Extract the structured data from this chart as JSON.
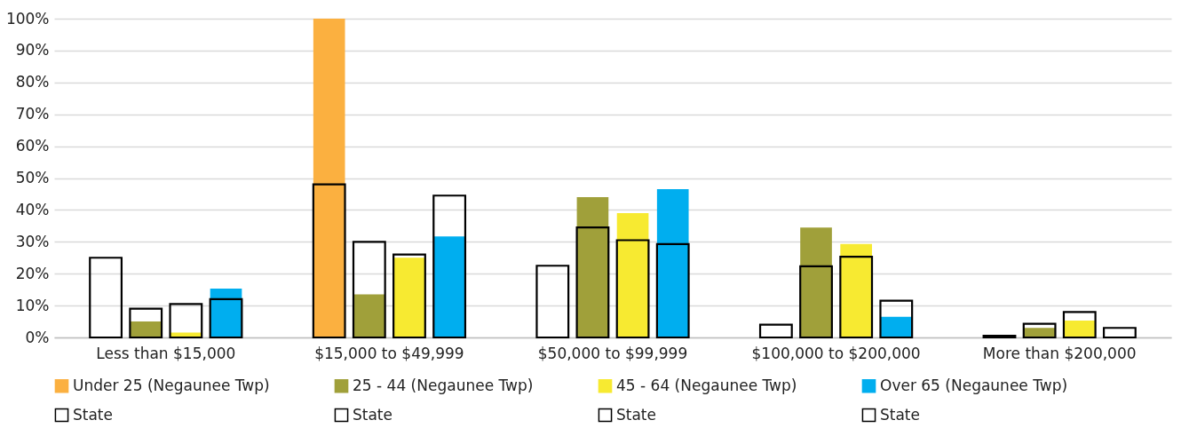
{
  "chart_data": {
    "type": "bar",
    "categories": [
      "Less than $15,000",
      "$15,000 to $49,999",
      "$50,000 to $99,999",
      "$100,000 to $200,000",
      "More than $200,000"
    ],
    "series": [
      {
        "name": "Under 25 (Negaunee Twp)",
        "color": "#fbb040",
        "values": [
          0,
          100,
          0,
          0,
          0
        ]
      },
      {
        "name": "25 - 44 (Negaunee Twp)",
        "color": "#a0a03a",
        "values": [
          5,
          13.5,
          44,
          34.5,
          3
        ]
      },
      {
        "name": "45 - 64 (Negaunee Twp)",
        "color": "#f7ea31",
        "values": [
          1.5,
          25,
          39,
          29.3,
          5.3
        ]
      },
      {
        "name": "Over 65 (Negaunee Twp)",
        "color": "#00aeef",
        "values": [
          15.3,
          31.7,
          46.5,
          6.5,
          0
        ]
      },
      {
        "name": "State",
        "color": "#000000",
        "values": [
          25,
          48,
          22.5,
          4,
          0.5
        ]
      },
      {
        "name": "State",
        "color": "#000000",
        "values": [
          9,
          30,
          34.5,
          22.3,
          4.3
        ]
      },
      {
        "name": "State",
        "color": "#000000",
        "values": [
          10.5,
          26,
          30.5,
          25.3,
          8
        ]
      },
      {
        "name": "State",
        "color": "#000000",
        "values": [
          12,
          44.5,
          29.3,
          11.5,
          3
        ]
      }
    ],
    "ylim": [
      0,
      100
    ],
    "yticks": [
      {
        "value": 0,
        "label": "0%"
      },
      {
        "value": 10,
        "label": "10%"
      },
      {
        "value": 20,
        "label": "20%"
      },
      {
        "value": 30,
        "label": "30%"
      },
      {
        "value": 40,
        "label": "40%"
      },
      {
        "value": 50,
        "label": "50%"
      },
      {
        "value": 60,
        "label": "60%"
      },
      {
        "value": 70,
        "label": "70%"
      },
      {
        "value": 80,
        "label": "80%"
      },
      {
        "value": 90,
        "label": "90%"
      },
      {
        "value": 100,
        "label": "100%"
      }
    ],
    "grid": "y",
    "legend": "bottom"
  }
}
